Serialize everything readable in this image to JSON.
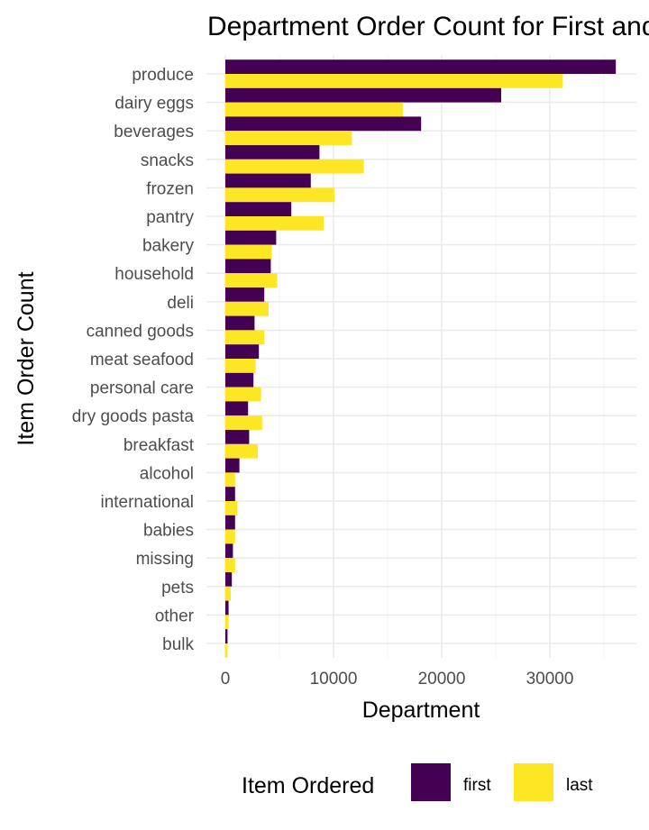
{
  "chart_data": {
    "type": "bar",
    "orientation": "horizontal",
    "title": "Department Order Count for First and Last Item Ordered",
    "xlabel": "Department",
    "ylabel": "Item Order Count",
    "categories": [
      "produce",
      "dairy eggs",
      "beverages",
      "snacks",
      "frozen",
      "pantry",
      "bakery",
      "household",
      "deli",
      "canned goods",
      "meat seafood",
      "personal care",
      "dry goods pasta",
      "breakfast",
      "alcohol",
      "international",
      "babies",
      "missing",
      "pets",
      "other",
      "bulk"
    ],
    "series": [
      {
        "name": "first",
        "color": "#440154",
        "values": [
          36100,
          25500,
          18100,
          8700,
          7900,
          6100,
          4700,
          4200,
          3600,
          2700,
          3100,
          2600,
          2100,
          2200,
          1300,
          900,
          900,
          700,
          600,
          300,
          200
        ]
      },
      {
        "name": "last",
        "color": "#FDE725",
        "values": [
          31200,
          16400,
          11700,
          12800,
          10100,
          9100,
          4300,
          4800,
          4000,
          3600,
          2800,
          3300,
          3400,
          3000,
          900,
          1100,
          900,
          900,
          500,
          300,
          200
        ]
      }
    ],
    "xlim": [
      -2000,
      37000
    ],
    "x_ticks": [
      0,
      10000,
      20000,
      30000
    ],
    "grid": true,
    "legend": {
      "title": "Item Ordered",
      "position": "bottom"
    }
  }
}
